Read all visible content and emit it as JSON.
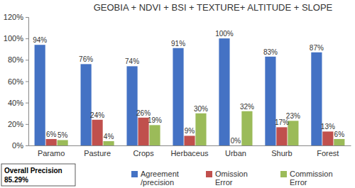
{
  "chart_data": {
    "type": "bar",
    "title": "GEOBIA + NDVI + BSI + TEXTURE+ ALTITUDE + SLOPE",
    "categories": [
      "Paramo",
      "Pasture",
      "Crops",
      "Herbaceus",
      "Urban",
      "Shurb",
      "Forest"
    ],
    "series": [
      {
        "name": "Agreement /precision",
        "color": "#4472c4",
        "values": [
          94,
          76,
          74,
          91,
          100,
          83,
          87
        ],
        "value_labels": [
          "94%",
          "76%",
          "74%",
          "91%",
          "100%",
          "83%",
          "87%"
        ]
      },
      {
        "name": "Omission Error",
        "color": "#c0504d",
        "values": [
          6,
          24,
          26,
          9,
          0,
          17,
          13
        ],
        "value_labels": [
          "6%",
          "24%",
          "26%",
          "9%",
          "0%",
          "17%",
          "13%"
        ]
      },
      {
        "name": "Commission Error",
        "color": "#9bbb59",
        "values": [
          5,
          4,
          19,
          30,
          32,
          23,
          6
        ],
        "value_labels": [
          "5%",
          "4%",
          "19%",
          "30%",
          "32%",
          "23%",
          "6%"
        ]
      }
    ],
    "ylim": [
      0,
      120
    ],
    "yticks": [
      {
        "value": 0,
        "label": "0%"
      },
      {
        "value": 20,
        "label": "20%"
      },
      {
        "value": 40,
        "label": "40%"
      },
      {
        "value": 60,
        "label": "60%"
      },
      {
        "value": 80,
        "label": "80%"
      },
      {
        "value": 100,
        "label": "100%"
      },
      {
        "value": 120,
        "label": "120%"
      }
    ],
    "grid": false,
    "legend": "bottom",
    "data_labels": true,
    "annotations": [
      "Overall Precision",
      "85.29%"
    ]
  }
}
